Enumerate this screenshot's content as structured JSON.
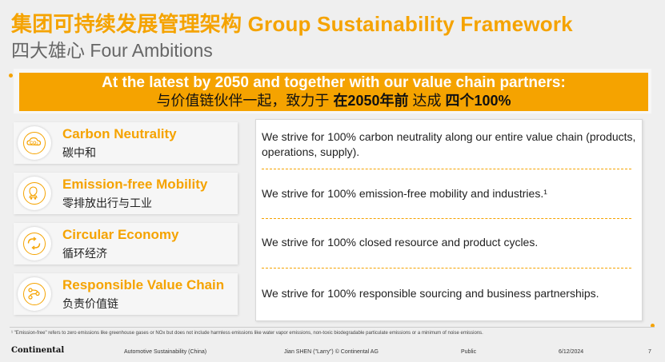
{
  "header": {
    "title": "集团可持续发展管理架构 Group Sustainability Framework",
    "subtitle": "四大雄心 Four Ambitions"
  },
  "banner": {
    "line1": "At the latest by 2050 and together with our value chain partners:",
    "line2_part1": "与价值链伙伴一起，致力于 ",
    "line2_bold1": "在2050年前",
    "line2_part2": " 达成 ",
    "line2_bold2": "四个100%"
  },
  "ambitions": [
    {
      "title": "Carbon Neutrality",
      "subtitle": "碳中和",
      "icon": "co2-icon",
      "icon_text": "CO₂",
      "description": "We strive for 100% carbon neutrality along our entire value chain (products, operations, supply)."
    },
    {
      "title": "Emission-free Mobility",
      "subtitle": "零排放出行与工业",
      "icon": "mobility-icon",
      "description": "We strive for 100% emission-free mobility and industries.¹"
    },
    {
      "title": "Circular Economy",
      "subtitle": "循环经济",
      "icon": "recycle-icon",
      "description": "We strive for 100% closed resource and product cycles."
    },
    {
      "title": "Responsible Value Chain",
      "subtitle": "负责价值链",
      "icon": "value-chain-icon",
      "description": "We strive for 100% responsible sourcing and business partnerships."
    }
  ],
  "footnote": "¹ \"Emission-free\" refers to zero emissions like greenhouse gases or NOx but does not include harmless emissions like water vapor emissions, non-toxic biodegradable particulate emissions or a minimum of noise emissions.",
  "footer": {
    "logo": "Continental",
    "department": "Automotive Sustainability (China)",
    "author": "Jian SHEN (\"Larry\") © Continental AG",
    "classification": "Public",
    "date": "6/12/2024",
    "page": "7"
  },
  "colors": {
    "accent": "#f5a300",
    "background": "#efefef"
  }
}
